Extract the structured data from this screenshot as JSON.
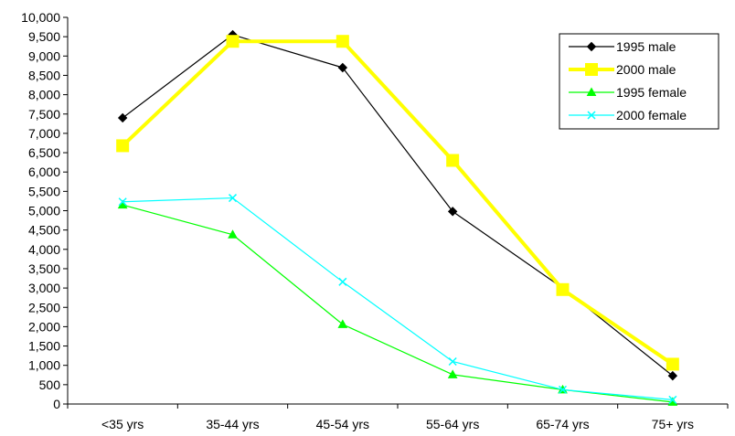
{
  "chart_data": {
    "type": "line",
    "categories": [
      "<35 yrs",
      "35-44 yrs",
      "45-54 yrs",
      "55-64 yrs",
      "65-74 yrs",
      "75+ yrs"
    ],
    "ylim": [
      0,
      10000
    ],
    "y_ticks": [
      "0",
      "500",
      "1,000",
      "1,500",
      "2,000",
      "2,500",
      "3,000",
      "3,500",
      "4,000",
      "4,500",
      "5,000",
      "5,500",
      "6,000",
      "6,500",
      "7,000",
      "7,500",
      "8,000",
      "8,500",
      "9,000",
      "9,500",
      "10,000"
    ],
    "grid": false,
    "legend_position": "top-right",
    "series": [
      {
        "name": "1995 male",
        "values": [
          7400,
          9550,
          8700,
          4980,
          3000,
          730
        ],
        "color": "#000000",
        "marker": "diamond"
      },
      {
        "name": "2000 male",
        "values": [
          6680,
          9380,
          9380,
          6300,
          2960,
          1030
        ],
        "color": "#FFFF00",
        "marker": "square"
      },
      {
        "name": "1995 female",
        "values": [
          5150,
          4380,
          2060,
          760,
          370,
          50
        ],
        "color": "#00FF00",
        "marker": "triangle"
      },
      {
        "name": "2000 female",
        "values": [
          5230,
          5330,
          3160,
          1100,
          370,
          110
        ],
        "color": "#00FFFF",
        "marker": "x"
      }
    ]
  }
}
